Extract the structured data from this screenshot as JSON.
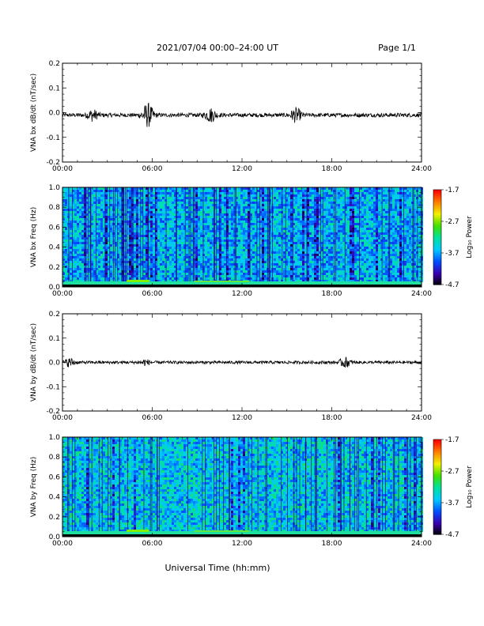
{
  "header": {
    "title": "2021/07/04  00:00–24:00 UT",
    "page": "Page 1/1"
  },
  "xaxis_label": "Universal Time (hh:mm)",
  "colorbar": {
    "label": "Log₁₀ Power",
    "ticks": [
      "-1.7",
      "-2.7",
      "-3.7",
      "-4.7"
    ],
    "range": [
      -4.7,
      -1.7
    ],
    "colormap": [
      "#000000",
      "#3a00b0",
      "#0050ff",
      "#00c8ff",
      "#00e0a0",
      "#40e000",
      "#f0f000",
      "#ff8000",
      "#ff0000"
    ]
  },
  "chart_data": [
    {
      "type": "line",
      "ylabel": "VNA bx dB/dt (nT/sec)",
      "ylim": [
        -0.2,
        0.2
      ],
      "yticks": [
        "0.2",
        "0.1",
        "0.0",
        "-0.1",
        "-0.2"
      ],
      "xlim": [
        0,
        24
      ],
      "xticks": [
        "00:00",
        "06:00",
        "12:00",
        "18:00",
        "24:00"
      ],
      "baseline": -0.01,
      "noise_amplitude": 0.008,
      "events": [
        {
          "hour": 2.0,
          "amplitude": 0.02
        },
        {
          "hour": 5.7,
          "amplitude": 0.045
        },
        {
          "hour": 9.9,
          "amplitude": 0.025
        },
        {
          "hour": 15.6,
          "amplitude": 0.025
        }
      ]
    },
    {
      "type": "heatmap",
      "ylabel": "VNA bx Freq (Hz)",
      "ylim": [
        0.0,
        1.0
      ],
      "yticks": [
        "1.0",
        "0.8",
        "0.6",
        "0.4",
        "0.2",
        "0.0"
      ],
      "xlim": [
        0,
        24
      ],
      "xticks": [
        "00:00",
        "06:00",
        "12:00",
        "18:00",
        "24:00"
      ],
      "zlim": [
        -4.7,
        -1.7
      ],
      "typical_log_power": -3.6
    },
    {
      "type": "line",
      "ylabel": "VNA by dB/dt (nT/sec)",
      "ylim": [
        -0.2,
        0.2
      ],
      "yticks": [
        "0.2",
        "0.1",
        "0.0",
        "-0.1",
        "-0.2"
      ],
      "xlim": [
        0,
        24
      ],
      "xticks": [
        "00:00",
        "06:00",
        "12:00",
        "18:00",
        "24:00"
      ],
      "baseline": 0.0,
      "noise_amplitude": 0.006,
      "events": [
        {
          "hour": 0.5,
          "amplitude": 0.015
        },
        {
          "hour": 5.5,
          "amplitude": 0.01
        },
        {
          "hour": 18.9,
          "amplitude": 0.018
        }
      ]
    },
    {
      "type": "heatmap",
      "ylabel": "VNA by Freq (Hz)",
      "ylim": [
        0.0,
        1.0
      ],
      "yticks": [
        "1.0",
        "0.8",
        "0.6",
        "0.4",
        "0.2",
        "0.0"
      ],
      "xlim": [
        0,
        24
      ],
      "xticks": [
        "00:00",
        "06:00",
        "12:00",
        "18:00",
        "24:00"
      ],
      "zlim": [
        -4.7,
        -1.7
      ],
      "typical_log_power": -3.5
    }
  ]
}
